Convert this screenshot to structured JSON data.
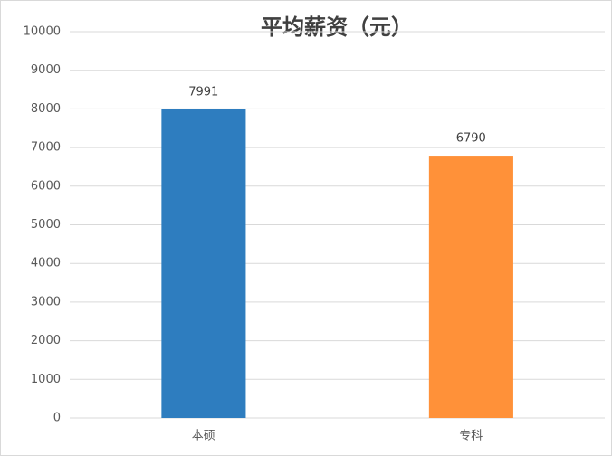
{
  "chart_data": {
    "type": "bar",
    "title": "平均薪资（元）",
    "categories": [
      "本硕",
      "专科"
    ],
    "values": [
      7991,
      6790
    ],
    "colors": [
      "#2e7dbf",
      "#ff9139"
    ],
    "ylim": [
      0,
      10000
    ],
    "yticks": [
      0,
      1000,
      2000,
      3000,
      4000,
      5000,
      6000,
      7000,
      8000,
      9000,
      10000
    ],
    "grid": true
  }
}
